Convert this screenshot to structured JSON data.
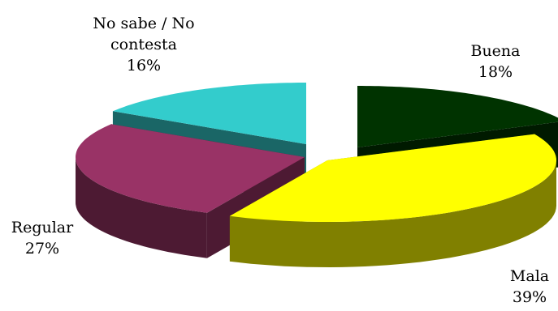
{
  "chart_data": {
    "type": "pie",
    "style": "3d-exploded",
    "title": "",
    "legend": "none",
    "slices": [
      {
        "label": "Buena",
        "label_lines": [
          "Buena"
        ],
        "value": 18,
        "display": "18%",
        "top_color": "#003300",
        "side_color": "#001a00"
      },
      {
        "label": "Mala",
        "label_lines": [
          "Mala"
        ],
        "value": 39,
        "display": "39%",
        "top_color": "#ffff00",
        "side_color": "#808000"
      },
      {
        "label": "Regular",
        "label_lines": [
          "Regular"
        ],
        "value": 27,
        "display": "27%",
        "top_color": "#993366",
        "side_color": "#4d1a33"
      },
      {
        "label": "No sabe / No contesta",
        "label_lines": [
          "No sabe / No",
          "contesta"
        ],
        "value": 16,
        "display": "16%",
        "top_color": "#33cccc",
        "side_color": "#1a6666"
      }
    ]
  }
}
